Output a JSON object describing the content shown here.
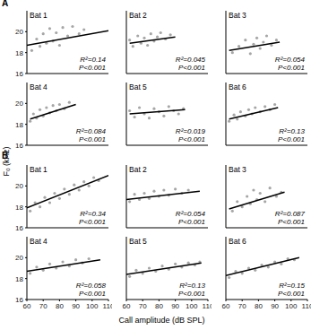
{
  "figure": {
    "panel_labels": [
      "A",
      "B"
    ],
    "xlabel": "Call amplitude (dB SPL)",
    "ylabel": "F₀ (kHz)"
  },
  "chart_data": [
    {
      "type": "scatter",
      "title": "Bat 1",
      "xlim": [
        60,
        110
      ],
      "ylim": [
        16,
        22
      ],
      "xticks": [
        60,
        70,
        80,
        90,
        100,
        110
      ],
      "yticks": [
        16,
        18,
        20
      ],
      "tick_labels": "y",
      "color": "#a6a6a6",
      "points": {
        "x": [
          63,
          66,
          68,
          70,
          72,
          74,
          76,
          78,
          80,
          82,
          85,
          88,
          92,
          95
        ],
        "y": [
          18.2,
          19.3,
          18.6,
          19.8,
          18.9,
          20.3,
          19.1,
          19.9,
          18.7,
          20.4,
          19.6,
          20.5,
          19.8,
          20.2
        ]
      },
      "fit": {
        "x": [
          60,
          110
        ],
        "y": [
          18.7,
          20.1
        ],
        "color": "#000000"
      },
      "annotations": [
        "R²=0.14",
        "P<0.001"
      ]
    },
    {
      "type": "scatter",
      "title": "Bat 2",
      "xlim": [
        60,
        110
      ],
      "ylim": [
        16,
        22
      ],
      "xticks": [
        60,
        70,
        80,
        90,
        100,
        110
      ],
      "yticks": [
        16,
        18,
        20
      ],
      "tick_labels": false,
      "color": "#a6a6a6",
      "points": {
        "x": [
          62,
          64,
          67,
          69,
          71,
          73,
          75,
          77,
          79,
          81,
          84,
          87
        ],
        "y": [
          19.2,
          18.6,
          19.6,
          18.9,
          19.4,
          18.7,
          19.8,
          19.1,
          19.5,
          19.9,
          19.3,
          19.7
        ]
      },
      "fit": {
        "x": [
          62,
          90
        ],
        "y": [
          18.9,
          19.5
        ],
        "color": "#000000"
      },
      "annotations": [
        "R²=0.045",
        "P<0.001"
      ]
    },
    {
      "type": "scatter",
      "title": "Bat 3",
      "xlim": [
        60,
        110
      ],
      "ylim": [
        16,
        22
      ],
      "xticks": [
        60,
        70,
        80,
        90,
        100,
        110
      ],
      "yticks": [
        16,
        18,
        20
      ],
      "tick_labels": false,
      "color": "#a6a6a6",
      "points": {
        "x": [
          64,
          68,
          72,
          75,
          77,
          79,
          81,
          83,
          85,
          88,
          91
        ],
        "y": [
          18.0,
          18.6,
          19.2,
          17.9,
          18.8,
          19.4,
          18.4,
          19.0,
          19.6,
          18.7,
          19.2
        ]
      },
      "fit": {
        "x": [
          62,
          93
        ],
        "y": [
          18.2,
          19.0
        ],
        "color": "#000000"
      },
      "annotations": [
        "R²=0.054",
        "P<0.001"
      ]
    },
    {
      "type": "scatter",
      "title": "Bat 4",
      "xlim": [
        60,
        110
      ],
      "ylim": [
        16,
        22
      ],
      "xticks": [
        60,
        70,
        80,
        90,
        100,
        110
      ],
      "yticks": [
        16,
        18,
        20
      ],
      "tick_labels": "y",
      "color": "#a6a6a6",
      "points": {
        "x": [
          62,
          64,
          66,
          68,
          70,
          72,
          74,
          76,
          78,
          80,
          83,
          86
        ],
        "y": [
          18.3,
          19.0,
          18.6,
          19.4,
          18.8,
          19.6,
          19.1,
          19.8,
          19.3,
          19.9,
          19.5,
          20.1
        ]
      },
      "fit": {
        "x": [
          62,
          90
        ],
        "y": [
          18.5,
          19.9
        ],
        "color": "#000000"
      },
      "annotations": [
        "R²=0.084",
        "P<0.001"
      ]
    },
    {
      "type": "scatter",
      "title": "Bat 5",
      "xlim": [
        60,
        110
      ],
      "ylim": [
        16,
        22
      ],
      "xticks": [
        60,
        70,
        80,
        90,
        100,
        110
      ],
      "yticks": [
        16,
        18,
        20
      ],
      "tick_labels": false,
      "color": "#a6a6a6",
      "points": {
        "x": [
          62,
          65,
          68,
          71,
          74,
          77,
          80,
          83,
          86,
          89,
          92,
          95
        ],
        "y": [
          19.3,
          18.7,
          19.6,
          19.0,
          18.6,
          19.5,
          19.2,
          18.8,
          19.7,
          19.3,
          19.0,
          19.5
        ]
      },
      "fit": {
        "x": [
          62,
          96
        ],
        "y": [
          19.0,
          19.4
        ],
        "color": "#000000"
      },
      "annotations": [
        "R²=0.019",
        "P<0.001"
      ]
    },
    {
      "type": "scatter",
      "title": "Bat 6",
      "xlim": [
        60,
        110
      ],
      "ylim": [
        16,
        22
      ],
      "xticks": [
        60,
        70,
        80,
        90,
        100,
        110
      ],
      "yticks": [
        16,
        18,
        20
      ],
      "tick_labels": false,
      "color": "#a6a6a6",
      "points": {
        "x": [
          62,
          65,
          67,
          69,
          72,
          74,
          76,
          78,
          81,
          84,
          87,
          90
        ],
        "y": [
          18.3,
          18.9,
          18.5,
          19.2,
          18.8,
          19.4,
          19.0,
          19.6,
          19.2,
          19.7,
          19.4,
          19.9
        ]
      },
      "fit": {
        "x": [
          62,
          92
        ],
        "y": [
          18.5,
          19.6
        ],
        "color": "#000000"
      },
      "annotations": [
        "R²=0.13",
        "P<0.001"
      ]
    },
    {
      "type": "scatter",
      "title": "Bat 1",
      "xlim": [
        60,
        110
      ],
      "ylim": [
        16,
        22
      ],
      "xticks": [
        60,
        70,
        80,
        90,
        100,
        110
      ],
      "yticks": [
        16,
        18,
        20
      ],
      "tick_labels": "y",
      "color": "#a6a6a6",
      "points": {
        "x": [
          62,
          65,
          68,
          71,
          74,
          77,
          80,
          83,
          86,
          89,
          92,
          95,
          98,
          101,
          104
        ],
        "y": [
          17.6,
          18.4,
          18.0,
          18.9,
          18.4,
          19.3,
          18.8,
          19.7,
          19.2,
          20.1,
          19.6,
          20.4,
          20.0,
          20.8,
          20.5
        ]
      },
      "fit": {
        "x": [
          60,
          110
        ],
        "y": [
          17.9,
          21.0
        ],
        "color": "#000000"
      },
      "annotations": [
        "R²=0.34",
        "P<0.001"
      ]
    },
    {
      "type": "scatter",
      "title": "Bat 2",
      "xlim": [
        60,
        110
      ],
      "ylim": [
        16,
        22
      ],
      "xticks": [
        60,
        70,
        80,
        90,
        100,
        110
      ],
      "yticks": [
        16,
        18,
        20
      ],
      "tick_labels": false,
      "color": "#a6a6a6",
      "points": {
        "x": [
          62,
          65,
          68,
          71,
          74,
          77,
          80,
          83,
          86,
          90,
          94,
          98
        ],
        "y": [
          18.5,
          19.2,
          18.7,
          19.3,
          18.8,
          19.5,
          19.0,
          19.6,
          19.1,
          19.7,
          19.3,
          19.6
        ]
      },
      "fit": {
        "x": [
          60,
          105
        ],
        "y": [
          18.7,
          19.5
        ],
        "color": "#000000"
      },
      "annotations": [
        "R²=0.054",
        "P<0.001"
      ]
    },
    {
      "type": "scatter",
      "title": "Bat 3",
      "xlim": [
        60,
        110
      ],
      "ylim": [
        16,
        22
      ],
      "xticks": [
        60,
        70,
        80,
        90,
        100,
        110
      ],
      "yticks": [
        16,
        18,
        20
      ],
      "tick_labels": false,
      "color": "#a6a6a6",
      "points": {
        "x": [
          64,
          67,
          70,
          73,
          75,
          77,
          79,
          81,
          84,
          87,
          91,
          94
        ],
        "y": [
          17.6,
          18.5,
          18.0,
          19.0,
          18.3,
          19.6,
          18.7,
          19.3,
          18.5,
          19.8,
          19.0,
          19.4
        ]
      },
      "fit": {
        "x": [
          62,
          96
        ],
        "y": [
          17.8,
          19.4
        ],
        "color": "#000000"
      },
      "annotations": [
        "R²=0.087",
        "P<0.001"
      ]
    },
    {
      "type": "scatter",
      "title": "Bat 4",
      "xlim": [
        60,
        110
      ],
      "ylim": [
        16,
        22
      ],
      "xticks": [
        60,
        70,
        80,
        90,
        100,
        110
      ],
      "yticks": [
        16,
        18,
        20
      ],
      "color": "#a6a6a6",
      "points": {
        "x": [
          62,
          66,
          70,
          74,
          78,
          82,
          86,
          90,
          94,
          98
        ],
        "y": [
          18.5,
          19.1,
          18.8,
          19.4,
          19.0,
          19.6,
          19.2,
          19.8,
          19.5,
          19.9
        ]
      },
      "fit": {
        "x": [
          60,
          105
        ],
        "y": [
          18.7,
          19.8
        ],
        "color": "#000000"
      },
      "annotations": [
        "R²=0.058",
        "P<0.001"
      ]
    },
    {
      "type": "scatter",
      "title": "Bat 5",
      "xlim": [
        60,
        110
      ],
      "ylim": [
        16,
        22
      ],
      "xticks": [
        60,
        70,
        80,
        90,
        100,
        110
      ],
      "yticks": [
        16,
        18,
        20
      ],
      "tick_labels": "x",
      "color": "#a6a6a6",
      "points": {
        "x": [
          62,
          66,
          70,
          74,
          78,
          82,
          86,
          90,
          94,
          98,
          102,
          105
        ],
        "y": [
          18.2,
          18.8,
          18.5,
          19.0,
          18.7,
          19.2,
          18.9,
          19.4,
          19.1,
          19.5,
          19.3,
          19.6
        ]
      },
      "fit": {
        "x": [
          60,
          106
        ],
        "y": [
          18.4,
          19.5
        ],
        "color": "#000000"
      },
      "annotations": [
        "R²=0.13",
        "P<0.001"
      ]
    },
    {
      "type": "scatter",
      "title": "Bat 6",
      "xlim": [
        60,
        110
      ],
      "ylim": [
        16,
        22
      ],
      "xticks": [
        60,
        70,
        80,
        90,
        100,
        110
      ],
      "yticks": [
        16,
        18,
        20
      ],
      "tick_labels": "x",
      "color": "#a6a6a6",
      "points": {
        "x": [
          62,
          66,
          70,
          74,
          78,
          82,
          86,
          90,
          94,
          98,
          102
        ],
        "y": [
          18.1,
          18.7,
          18.5,
          19.0,
          18.8,
          19.3,
          19.1,
          19.6,
          19.4,
          19.9,
          19.8
        ]
      },
      "fit": {
        "x": [
          60,
          105
        ],
        "y": [
          18.3,
          20.0
        ],
        "color": "#000000"
      },
      "annotations": [
        "R²=0.15",
        "P<0.001"
      ]
    }
  ]
}
